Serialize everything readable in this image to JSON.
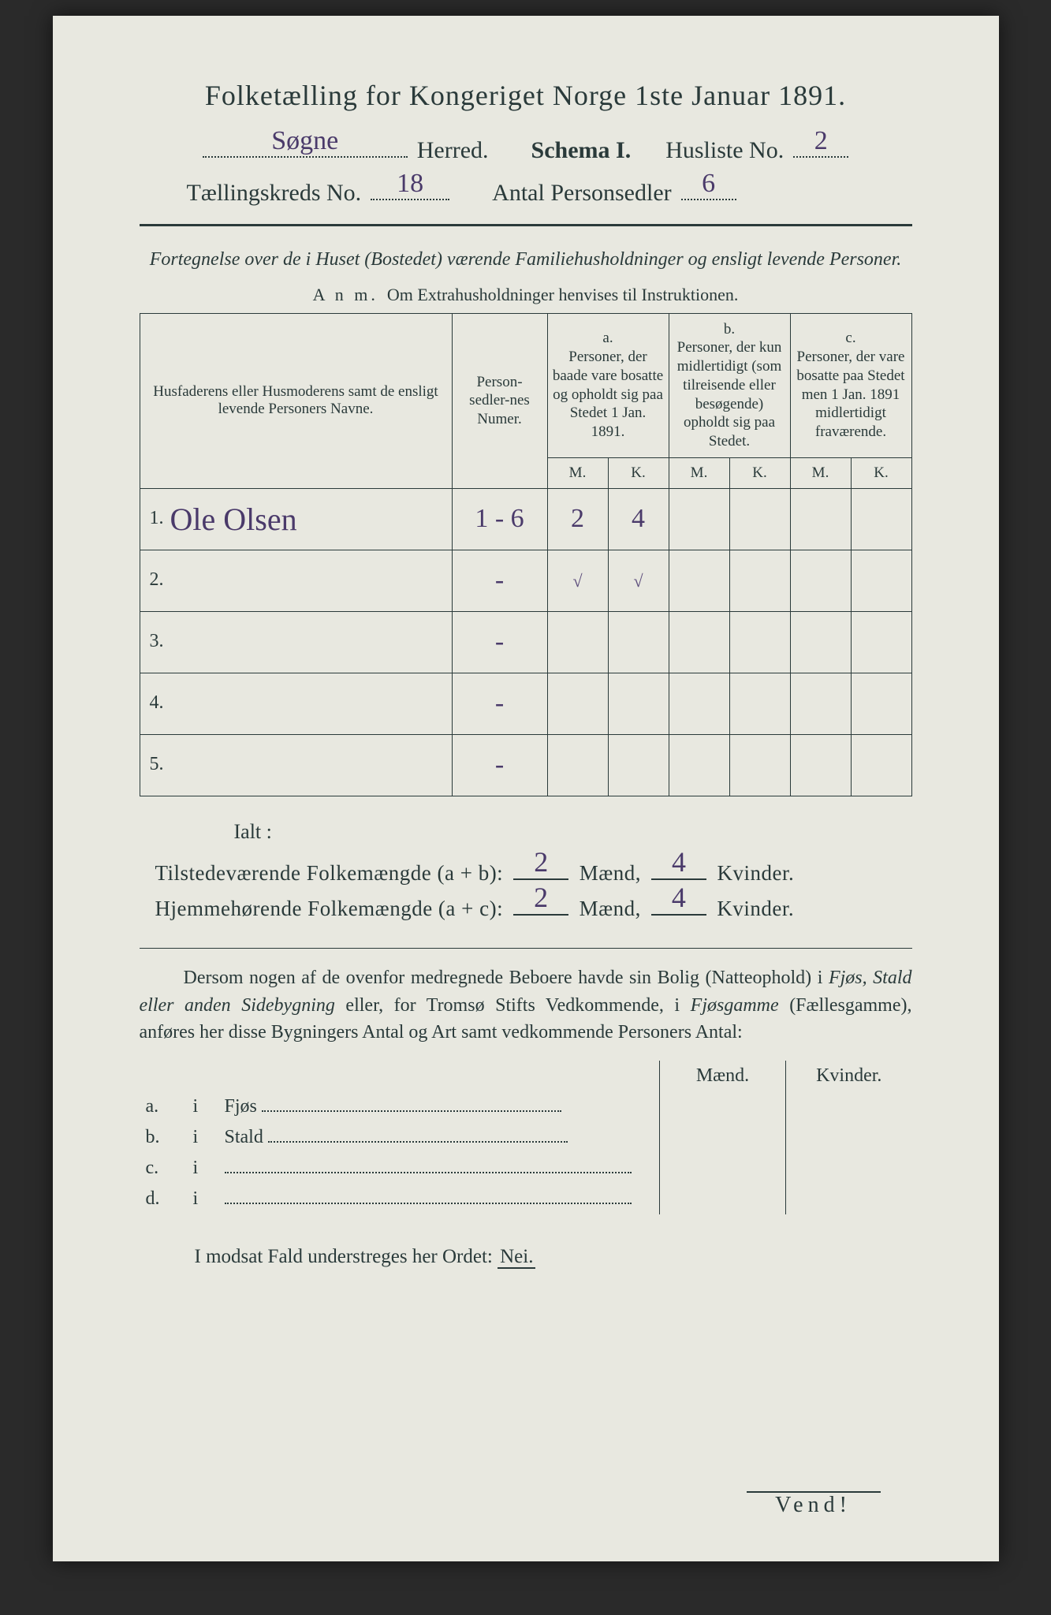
{
  "colors": {
    "paper": "#e8e8e0",
    "ink": "#2a3a3a",
    "handwriting": "#4a3a6a",
    "background": "#2a2a2a"
  },
  "title": "Folketælling for Kongeriget Norge 1ste Januar 1891.",
  "header1": {
    "herred_hand": "Søgne",
    "herred_label": "Herred.",
    "schema_label": "Schema I.",
    "husliste_label": "Husliste No.",
    "husliste_hand": "2"
  },
  "header2": {
    "kreds_label": "Tællingskreds No.",
    "kreds_hand": "18",
    "antal_label": "Antal Personsedler",
    "antal_hand": "6"
  },
  "subtitle": "Fortegnelse over de i Huset (Bostedet) værende Familiehusholdninger og ensligt levende Personer.",
  "anm_label": "A n m.",
  "anm_text": "Om Extrahusholdninger henvises til Instruktionen.",
  "table": {
    "col_name": "Husfaderens eller Husmoderens samt de ensligt levende Personers Navne.",
    "col_num": "Person-sedler-nes Numer.",
    "a_label": "a.",
    "a_text": "Personer, der baade vare bosatte og opholdt sig paa Stedet 1 Jan. 1891.",
    "b_label": "b.",
    "b_text": "Personer, der kun midlertidigt (som tilreisende eller besøgende) opholdt sig paa Stedet.",
    "c_label": "c.",
    "c_text": "Personer, der vare bosatte paa Stedet men 1 Jan. 1891 midlertidigt fraværende.",
    "m": "M.",
    "k": "K.",
    "rows": [
      {
        "n": "1.",
        "name_hand": "Ole Olsen",
        "num_hand": "1 - 6",
        "a_m": "2",
        "a_k": "4",
        "b_m": "",
        "b_k": "",
        "c_m": "",
        "c_k": ""
      },
      {
        "n": "2.",
        "name_hand": "",
        "num_hand": "-",
        "a_m": "✓",
        "a_k": "✓",
        "b_m": "",
        "b_k": "",
        "c_m": "",
        "c_k": ""
      },
      {
        "n": "3.",
        "name_hand": "",
        "num_hand": "-",
        "a_m": "",
        "a_k": "",
        "b_m": "",
        "b_k": "",
        "c_m": "",
        "c_k": ""
      },
      {
        "n": "4.",
        "name_hand": "",
        "num_hand": "-",
        "a_m": "",
        "a_k": "",
        "b_m": "",
        "b_k": "",
        "c_m": "",
        "c_k": ""
      },
      {
        "n": "5.",
        "name_hand": "",
        "num_hand": "-",
        "a_m": "",
        "a_k": "",
        "b_m": "",
        "b_k": "",
        "c_m": "",
        "c_k": ""
      }
    ]
  },
  "ialt": "Ialt :",
  "sum1": {
    "label": "Tilstedeværende Folkemængde (a + b):",
    "m_hand": "2",
    "m_label": "Mænd,",
    "k_hand": "4",
    "k_label": "Kvinder."
  },
  "sum2": {
    "label": "Hjemmehørende Folkemængde (a + c):",
    "m_hand": "2",
    "m_label": "Mænd,",
    "k_hand": "4",
    "k_label": "Kvinder."
  },
  "paragraph": "Dersom nogen af de ovenfor medregnede Beboere havde sin Bolig (Natteophold) i Fjøs, Stald eller anden Sidebygning eller, for Tromsø Stifts Vedkommende, i Fjøsgamme (Fællesgamme), anføres her disse Bygningers Antal og Art samt vedkommende Personers Antal:",
  "subtable": {
    "maend": "Mænd.",
    "kvinder": "Kvinder.",
    "rows": [
      {
        "k": "a.",
        "i": "i",
        "lbl": "Fjøs"
      },
      {
        "k": "b.",
        "i": "i",
        "lbl": "Stald"
      },
      {
        "k": "c.",
        "i": "i",
        "lbl": ""
      },
      {
        "k": "d.",
        "i": "i",
        "lbl": ""
      }
    ]
  },
  "modsat_pre": "I modsat Fald understreges her Ordet:",
  "modsat_nei": "Nei.",
  "vend": "Vend!"
}
